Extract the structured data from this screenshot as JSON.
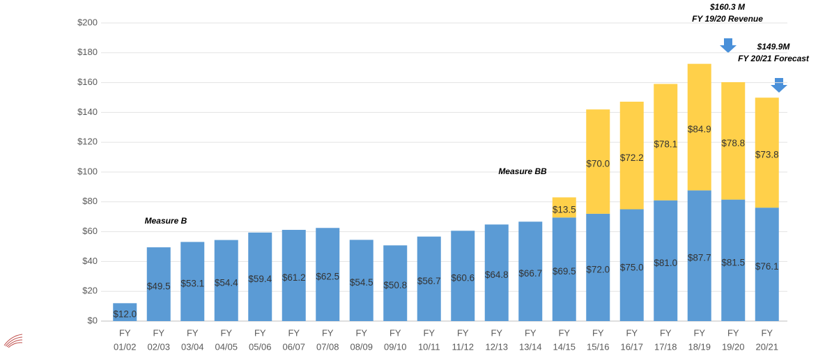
{
  "chart_data": {
    "type": "bar",
    "stacked": true,
    "categories": [
      [
        "FY",
        "01/02"
      ],
      [
        "FY",
        "02/03"
      ],
      [
        "FY",
        "03/04"
      ],
      [
        "FY",
        "04/05"
      ],
      [
        "FY",
        "05/06"
      ],
      [
        "FY",
        "06/07"
      ],
      [
        "FY",
        "07/08"
      ],
      [
        "FY",
        "08/09"
      ],
      [
        "FY",
        "09/10"
      ],
      [
        "FY",
        "10/11"
      ],
      [
        "FY",
        "11/12"
      ],
      [
        "FY",
        "12/13"
      ],
      [
        "FY",
        "13/14"
      ],
      [
        "FY",
        "14/15"
      ],
      [
        "FY",
        "15/16"
      ],
      [
        "FY",
        "16/17"
      ],
      [
        "FY",
        "17/18"
      ],
      [
        "FY",
        "18/19"
      ],
      [
        "FY",
        "19/20"
      ],
      [
        "FY",
        "20/21"
      ]
    ],
    "series": [
      {
        "name": "Measure B",
        "color": "#5b9bd5",
        "values": [
          12.0,
          49.5,
          53.1,
          54.4,
          59.4,
          61.2,
          62.5,
          54.5,
          50.8,
          56.7,
          60.6,
          64.8,
          66.7,
          69.5,
          72.0,
          75.0,
          81.0,
          87.7,
          81.5,
          76.1
        ],
        "value_labels": [
          "$12.0",
          "$49.5",
          "$53.1",
          "$54.4",
          "$59.4",
          "$61.2",
          "$62.5",
          "$54.5",
          "$50.8",
          "$56.7",
          "$60.6",
          "$64.8",
          "$66.7",
          "$69.5",
          "$72.0",
          "$75.0",
          "$81.0",
          "$87.7",
          "$81.5",
          "$76.1"
        ]
      },
      {
        "name": "Measure BB",
        "color": "#ffd04a",
        "values": [
          null,
          null,
          null,
          null,
          null,
          null,
          null,
          null,
          null,
          null,
          null,
          null,
          null,
          13.5,
          70.0,
          72.2,
          78.1,
          84.9,
          78.8,
          73.8
        ],
        "value_labels": [
          null,
          null,
          null,
          null,
          null,
          null,
          null,
          null,
          null,
          null,
          null,
          null,
          null,
          "$13.5",
          "$70.0",
          "$72.2",
          "$78.1",
          "$84.9",
          "$78.8",
          "$73.8"
        ]
      }
    ],
    "ylim": [
      0,
      200
    ],
    "yticks": [
      {
        "value": 0,
        "label": "$0"
      },
      {
        "value": 20,
        "label": "$20"
      },
      {
        "value": 40,
        "label": "$40"
      },
      {
        "value": 60,
        "label": "$60"
      },
      {
        "value": 80,
        "label": "$80"
      },
      {
        "value": 100,
        "label": "$100"
      },
      {
        "value": 120,
        "label": "$120"
      },
      {
        "value": 140,
        "label": "$140"
      },
      {
        "value": 160,
        "label": "$160"
      },
      {
        "value": 180,
        "label": "$180"
      },
      {
        "value": 200,
        "label": "$200"
      }
    ],
    "grid": true,
    "annotations": [
      [
        "$160.3 M",
        "FY 19/20 Revenue"
      ],
      [
        "$149.9M",
        "FY 20/21 Forecast"
      ]
    ]
  }
}
